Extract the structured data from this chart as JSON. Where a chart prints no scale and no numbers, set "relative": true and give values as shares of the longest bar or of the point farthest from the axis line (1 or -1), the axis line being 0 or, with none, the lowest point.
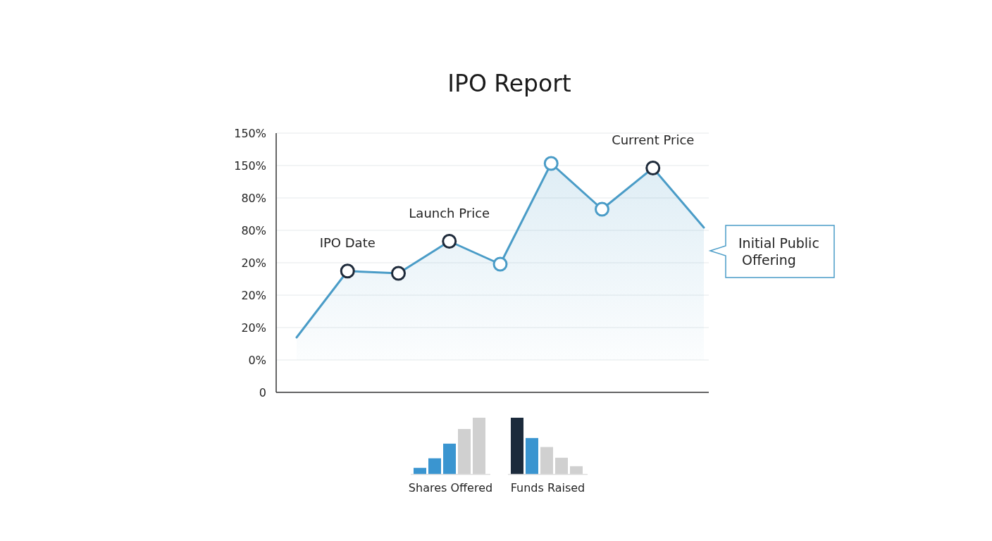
{
  "chart_data": [
    {
      "type": "area",
      "title": "IPO Report",
      "relative": true,
      "categories": [
        null,
        null,
        null,
        null,
        null,
        null,
        null,
        null,
        null
      ],
      "y_categories": [
        "150%",
        "150%",
        "80%",
        "80%",
        "20%",
        "20%",
        "20%",
        "0%",
        "0"
      ],
      "grid": "y",
      "tick_labels": "y",
      "series": [
        {
          "type": "area",
          "color": "#4a9cc7",
          "marker": "circle",
          "colors": [
            null,
            "#1e2a3a",
            "#1e2a3a",
            "#1e2a3a",
            "#4a9cc7",
            "#4a9cc7",
            "#4a9cc7",
            "#1e2a3a",
            null
          ],
          "values": [
            0.24,
            0.53,
            0.52,
            0.66,
            0.56,
            1,
            0.8,
            0.98,
            0.72
          ]
        }
      ],
      "annotations": [
        "IPO Date",
        "Launch Price",
        "Current Price",
        "Initial Public Offering"
      ]
    },
    {
      "type": "bar",
      "relative": true,
      "xlabel": "Shares Offered",
      "categories": [
        null,
        null,
        null,
        null,
        null
      ],
      "values": [
        0.11,
        0.28,
        0.54,
        0.8,
        1
      ],
      "colors": [
        "#3a95d0",
        "#3a95d0",
        "#3a95d0",
        "#d0d0d0",
        "#d0d0d0"
      ]
    },
    {
      "type": "bar",
      "relative": true,
      "xlabel": "Funds Raised",
      "categories": [
        null,
        null,
        null,
        null,
        null
      ],
      "values": [
        1,
        0.64,
        0.48,
        0.29,
        0.14
      ],
      "colors": [
        "#1c2b3c",
        "#3a95d0",
        "#d0d0d0",
        "#d0d0d0",
        "#d0d0d0"
      ]
    }
  ]
}
